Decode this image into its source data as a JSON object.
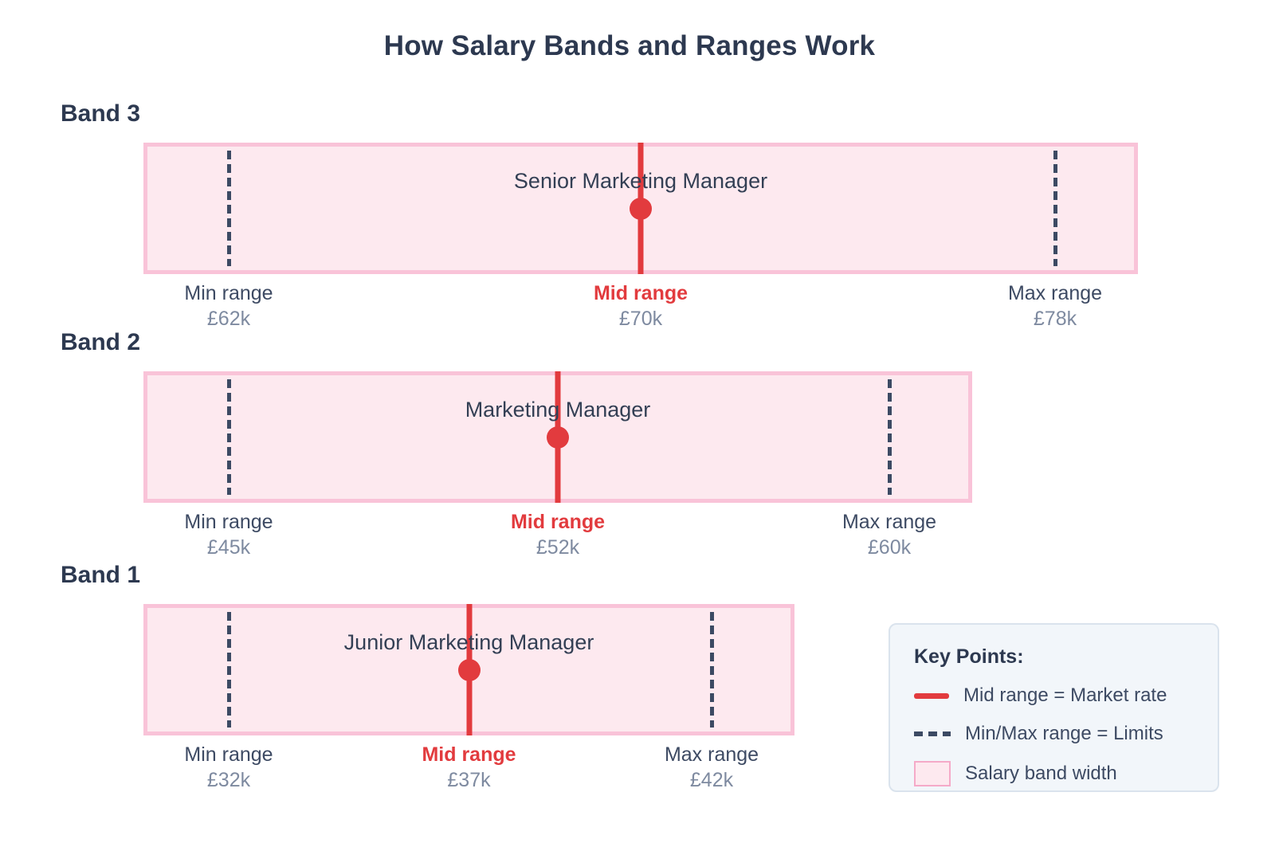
{
  "title": "How Salary Bands and Ranges Work",
  "colors": {
    "heading_navy": "#2d3950",
    "label_navy": "#3d4a63",
    "value_gray": "#7e8aa0",
    "mid_red": "#e23b3e",
    "band_fill_pink": "#fde9ef",
    "band_border_pink": "#f9c3d8",
    "legend_bg": "#f2f6fa",
    "legend_border": "#dae3ed"
  },
  "chart_data": {
    "type": "range-bands",
    "title": "How Salary Bands and Ranges Work",
    "currency": "GBP",
    "orientation": "horizontal",
    "legend_position": "bottom-right",
    "bands": [
      {
        "band_label": "Band 3",
        "role": "Senior Marketing Manager",
        "min_value_k": 62,
        "mid_value_k": 70,
        "max_value_k": 78,
        "min": {
          "label": "Min range",
          "display": "£62k"
        },
        "mid": {
          "label": "Mid range",
          "display": "£70k"
        },
        "max": {
          "label": "Max range",
          "display": "£78k"
        }
      },
      {
        "band_label": "Band 2",
        "role": "Marketing Manager",
        "min_value_k": 45,
        "mid_value_k": 52,
        "max_value_k": 60,
        "min": {
          "label": "Min range",
          "display": "£45k"
        },
        "mid": {
          "label": "Mid range",
          "display": "£52k"
        },
        "max": {
          "label": "Max range",
          "display": "£60k"
        }
      },
      {
        "band_label": "Band 1",
        "role": "Junior Marketing Manager",
        "min_value_k": 32,
        "mid_value_k": 37,
        "max_value_k": 42,
        "min": {
          "label": "Min range",
          "display": "£32k"
        },
        "mid": {
          "label": "Mid range",
          "display": "£37k"
        },
        "max": {
          "label": "Max range",
          "display": "£42k"
        }
      }
    ],
    "legend": {
      "title": "Key Points:",
      "items": [
        {
          "swatch": "red-solid-line",
          "label": "Mid range = Market rate"
        },
        {
          "swatch": "navy-dashed-line",
          "label": "Min/Max range = Limits"
        },
        {
          "swatch": "pink-filled-box",
          "label": "Salary band width"
        }
      ]
    }
  }
}
